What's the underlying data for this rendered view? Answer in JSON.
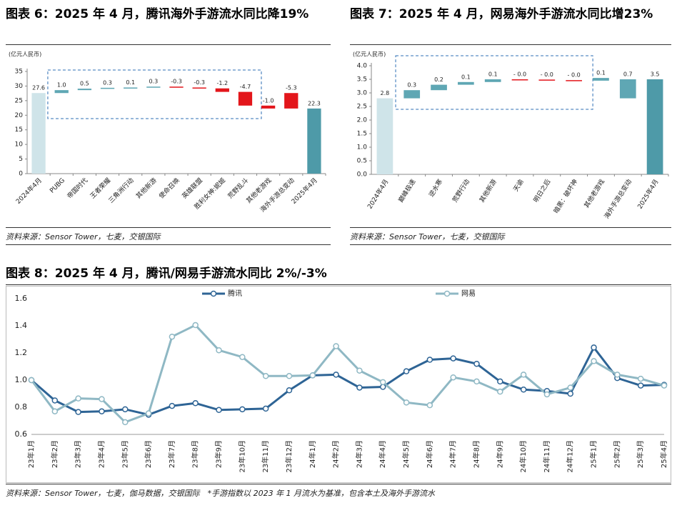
{
  "chart_data": [
    {
      "type": "waterfall",
      "title": "图表 6：2025 年 4 月，腾讯海外手游流水同比降19%",
      "unit": "(亿元人民币)",
      "categories": [
        "2024年4月",
        "PUBG",
        "帝国时代",
        "王者荣耀",
        "三角洲行动",
        "其他新游",
        "使命召唤",
        "英雄联盟",
        "胜利女神:妮姬",
        "荒野乱斗",
        "其他老游戏",
        "海外手游总变动",
        "2025年4月"
      ],
      "values": [
        27.6,
        1.0,
        0.5,
        0.3,
        0.1,
        0.3,
        -0.3,
        -0.3,
        -1.2,
        -4.7,
        -1.0,
        -5.3,
        22.3
      ],
      "value_labels": [
        "27.6",
        "1.0",
        "0.5",
        "0.3",
        "0.1",
        "0.3",
        "-0.3",
        "-0.3",
        "-1.2",
        "-4.7",
        "-1.0",
        "-5.3",
        "22.3"
      ],
      "colors": {
        "start": "#cfe4e9",
        "end": "#4e9aa8",
        "increase": "#5fa7b4",
        "decrease": "#e3161b"
      },
      "ylim": [
        0,
        35
      ],
      "yticks": [
        0,
        5,
        10,
        15,
        20,
        25,
        30,
        35
      ],
      "source": "资料来源：Sensor Tower，七麦，交银国际"
    },
    {
      "type": "waterfall",
      "title": "图表 7：2025 年 4 月，网易海外手游流水同比增23%",
      "unit": "(亿元人民币)",
      "categories": [
        "2024年4月",
        "巅峰极速",
        "逆水寒",
        "荒野行动",
        "其他新游",
        "天谕",
        "明日之后",
        "暗黑：破坏神",
        "其他老游戏",
        "海外手游总变动",
        "2025年4月"
      ],
      "values": [
        2.8,
        0.3,
        0.2,
        0.1,
        0.1,
        -0.01,
        -0.02,
        -0.02,
        0.1,
        0.7,
        3.5
      ],
      "value_labels": [
        "2.8",
        "0.3",
        "0.2",
        "0.1",
        "0.1",
        "- 0.0",
        "- 0.0",
        "- 0.0",
        "0.1",
        "0.7",
        "3.5"
      ],
      "colors": {
        "start": "#cfe4e9",
        "end": "#4e9aa8",
        "increase": "#5fa7b4",
        "decrease": "#e3161b"
      },
      "ylim": [
        0,
        4
      ],
      "yticks": [
        {
          "value": 0,
          "label": "0.0"
        },
        0.5,
        {
          "value": 1,
          "label": "1.0"
        },
        1.5,
        {
          "value": 2,
          "label": "2.0"
        },
        2.5,
        {
          "value": 3,
          "label": "3.0"
        },
        3.5,
        {
          "value": 4,
          "label": "4.0"
        }
      ],
      "source": "资料来源：Sensor Tower，七麦，交银国际"
    },
    {
      "type": "line",
      "title": "图表 8：2025 年 4 月，腾讯/网易手游流水同比 2%/-3%",
      "categories": [
        "23年1月",
        "23年2月",
        "23年3月",
        "23年4月",
        "23年5月",
        "23年6月",
        "23年7月",
        "23年8月",
        "23年9月",
        "23年10月",
        "23年11月",
        "23年12月",
        "24年1月",
        "24年2月",
        "24年3月",
        "24年4月",
        "24年5月",
        "24年6月",
        "24年7月",
        "24年8月",
        "24年9月",
        "24年10月",
        "24年11月",
        "24年12月",
        "25年1月",
        "25年2月",
        "25年3月",
        "25年4月"
      ],
      "series": [
        {
          "name": "腾讯",
          "color": "#2e6495",
          "values": [
            1.0,
            0.85,
            0.765,
            0.77,
            0.785,
            0.745,
            0.81,
            0.83,
            0.78,
            0.785,
            0.79,
            0.925,
            1.035,
            1.04,
            0.945,
            0.95,
            1.065,
            1.15,
            1.16,
            1.12,
            0.99,
            0.93,
            0.92,
            0.9,
            1.24,
            1.015,
            0.96,
            0.965
          ]
        },
        {
          "name": "网易",
          "color": "#8fb8c4",
          "values": [
            1.0,
            0.77,
            0.865,
            0.86,
            0.69,
            0.755,
            1.32,
            1.405,
            1.22,
            1.17,
            1.03,
            1.03,
            1.035,
            1.25,
            1.07,
            0.985,
            0.835,
            0.815,
            1.02,
            0.99,
            0.915,
            1.04,
            0.895,
            0.945,
            1.14,
            1.04,
            1.01,
            0.96
          ]
        }
      ],
      "ylim": [
        0.6,
        1.6
      ],
      "yticks": [
        0.6,
        0.8,
        {
          "value": 1,
          "label": "1.0"
        },
        1.2,
        1.4,
        1.6
      ],
      "grid": false,
      "source": "资料来源：Sensor Tower，七麦，伽马数据，交银国际　*手游指数以 2023 年 1 月流水为基准，包含本土及海外手游流水"
    }
  ]
}
